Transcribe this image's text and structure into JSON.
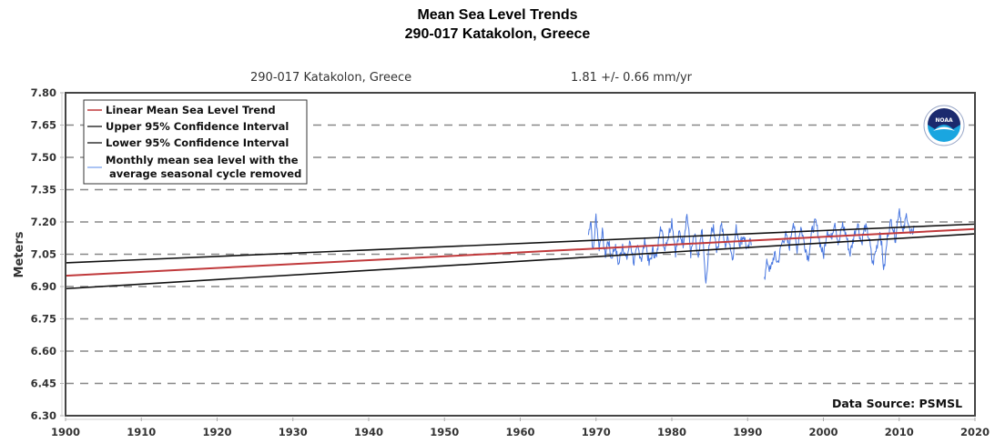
{
  "chart_data": {
    "type": "line",
    "title": "Mean Sea Level Trends",
    "subtitle": "290-017 Katakolon, Greece",
    "plot_header": {
      "station": "290-017 Katakolon, Greece",
      "trend": "1.81 +/-  0.66 mm/yr"
    },
    "xlabel": "",
    "ylabel": "Meters",
    "xlim": [
      1900,
      2020
    ],
    "ylim": [
      6.3,
      7.8
    ],
    "xticks": [
      "1900",
      "1910",
      "1920",
      "1930",
      "1940",
      "1950",
      "1960",
      "1970",
      "1980",
      "1990",
      "2000",
      "2010",
      "2020"
    ],
    "yticks": [
      "6.30",
      "6.45",
      "6.60",
      "6.75",
      "6.90",
      "7.05",
      "7.20",
      "7.35",
      "7.50",
      "7.65",
      "7.80"
    ],
    "grid": "horizontal-dashed",
    "legend_position": "top-left",
    "legend": [
      {
        "label": "Linear Mean Sea Level Trend",
        "color": "#c0393b"
      },
      {
        "label": "Upper 95% Confidence Interval",
        "color": "#222222"
      },
      {
        "label": "Lower 95% Confidence Interval",
        "color": "#222222"
      },
      {
        "label": "Monthly mean sea level with the",
        "label2": "average seasonal cycle removed",
        "color": "#8fb0f0"
      }
    ],
    "series": [
      {
        "name": "Linear Mean Sea Level Trend",
        "color": "#c0393b",
        "x": [
          1900,
          2020
        ],
        "y": [
          6.95,
          7.167
        ]
      },
      {
        "name": "Upper 95% Confidence Interval",
        "color": "#111111",
        "x": [
          1900,
          2020
        ],
        "y": [
          7.01,
          7.19
        ]
      },
      {
        "name": "Lower 95% Confidence Interval",
        "color": "#111111",
        "x": [
          1900,
          2020
        ],
        "y": [
          6.89,
          7.145
        ]
      },
      {
        "name": "Monthly mean sea level with the average seasonal cycle removed",
        "color": "#4a78e0",
        "x_start": 1969.0,
        "x_step": 0.0833,
        "gap": [
          1990.5,
          1992.2
        ],
        "x_end": 2012.0,
        "y_keypoints": [
          [
            1969.0,
            7.14
          ],
          [
            1969.3,
            7.22
          ],
          [
            1969.6,
            7.05
          ],
          [
            1970.0,
            7.23
          ],
          [
            1970.4,
            7.08
          ],
          [
            1970.8,
            7.16
          ],
          [
            1971.2,
            7.04
          ],
          [
            1971.6,
            7.12
          ],
          [
            1972.0,
            7.03
          ],
          [
            1972.5,
            7.09
          ],
          [
            1973.0,
            7.0
          ],
          [
            1973.5,
            7.1
          ],
          [
            1974.0,
            7.02
          ],
          [
            1974.5,
            7.11
          ],
          [
            1975.0,
            7.01
          ],
          [
            1975.5,
            7.08
          ],
          [
            1976.0,
            7.03
          ],
          [
            1976.5,
            7.12
          ],
          [
            1977.0,
            7.0
          ],
          [
            1977.5,
            7.07
          ],
          [
            1978.0,
            7.03
          ],
          [
            1978.5,
            7.2
          ],
          [
            1979.0,
            7.08
          ],
          [
            1979.5,
            7.13
          ],
          [
            1980.0,
            7.21
          ],
          [
            1980.5,
            7.06
          ],
          [
            1981.0,
            7.15
          ],
          [
            1981.5,
            7.1
          ],
          [
            1982.0,
            7.24
          ],
          [
            1982.5,
            7.05
          ],
          [
            1983.0,
            7.14
          ],
          [
            1983.5,
            7.02
          ],
          [
            1984.0,
            7.17
          ],
          [
            1984.5,
            6.9
          ],
          [
            1985.0,
            7.12
          ],
          [
            1985.5,
            7.18
          ],
          [
            1986.0,
            7.06
          ],
          [
            1986.5,
            7.2
          ],
          [
            1987.0,
            7.09
          ],
          [
            1987.5,
            7.13
          ],
          [
            1988.0,
            7.03
          ],
          [
            1988.5,
            7.17
          ],
          [
            1989.0,
            7.1
          ],
          [
            1989.5,
            7.14
          ],
          [
            1990.0,
            7.06
          ],
          [
            1990.4,
            7.12
          ],
          [
            1992.3,
            6.95
          ],
          [
            1992.6,
            7.02
          ],
          [
            1993.0,
            6.97
          ],
          [
            1993.5,
            7.05
          ],
          [
            1994.0,
            7.01
          ],
          [
            1994.5,
            7.1
          ],
          [
            1995.0,
            7.14
          ],
          [
            1995.5,
            7.08
          ],
          [
            1996.0,
            7.21
          ],
          [
            1996.5,
            7.07
          ],
          [
            1997.0,
            7.18
          ],
          [
            1997.5,
            7.1
          ],
          [
            1998.0,
            7.03
          ],
          [
            1998.5,
            7.16
          ],
          [
            1999.0,
            7.2
          ],
          [
            1999.5,
            7.11
          ],
          [
            2000.0,
            7.04
          ],
          [
            2000.5,
            7.17
          ],
          [
            2001.0,
            7.12
          ],
          [
            2001.5,
            7.21
          ],
          [
            2002.0,
            7.09
          ],
          [
            2002.5,
            7.19
          ],
          [
            2003.0,
            7.14
          ],
          [
            2003.5,
            7.05
          ],
          [
            2004.0,
            7.13
          ],
          [
            2004.5,
            7.2
          ],
          [
            2005.0,
            7.1
          ],
          [
            2005.5,
            7.18
          ],
          [
            2006.0,
            7.13
          ],
          [
            2006.5,
            7.0
          ],
          [
            2007.0,
            7.08
          ],
          [
            2007.5,
            7.16
          ],
          [
            2008.0,
            6.97
          ],
          [
            2008.5,
            7.15
          ],
          [
            2009.0,
            7.21
          ],
          [
            2009.5,
            7.12
          ],
          [
            2010.0,
            7.27
          ],
          [
            2010.5,
            7.14
          ],
          [
            2011.0,
            7.24
          ],
          [
            2011.5,
            7.13
          ],
          [
            2012.0,
            7.18
          ]
        ]
      }
    ],
    "annotations": {
      "data_source": "Data Source: PSMSL",
      "logo": "noaa-logo"
    }
  }
}
